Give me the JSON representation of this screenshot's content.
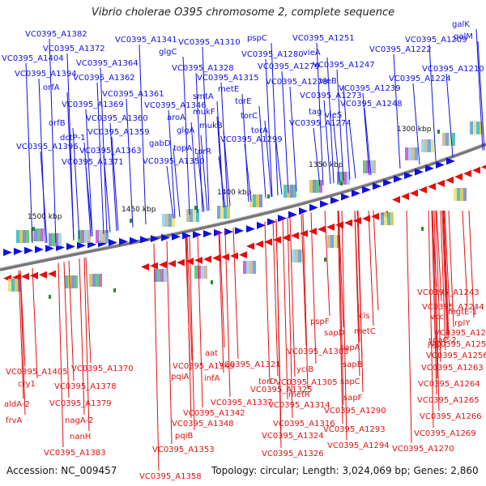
{
  "title": "Vibrio cholerae O395 chromosome 2, complete sequence",
  "ruler_labels": [
    "1300 kbp",
    "1350 kbp",
    "1400 kbp",
    "1450 kbp",
    "1500 kbp"
  ],
  "forward_labels": [
    "VC0395_A1382",
    "VC0395_A1372",
    "VC0395_A1404",
    "VC0395_A1364",
    "VC0395_A1394",
    "orfA",
    "VC0395_A1362",
    "VC0395_A1361",
    "VC0395_A1369",
    "VC0395_A1360",
    "orfB",
    "dctP-1",
    "VC0395_A1359",
    "VC0395_A1396",
    "VC0395_A1363",
    "VC0395_A1371",
    "VC0395_A1341",
    "glgC",
    "VC0395_A1328",
    "smtA",
    "VC0395_A1346",
    "aroA",
    "glgA",
    "gabD",
    "topA",
    "VC0395_A1350",
    "VC0395_A1310",
    "pspC",
    "VC0395_A1280",
    "VC0395_A1279",
    "VC0395_A1315",
    "metE",
    "torE",
    "mukF",
    "mukB",
    "torR",
    "torC",
    "torA",
    "VC0395_A1299",
    "VC0395_A1278",
    "VC0395_A1273",
    "tag",
    "VC0395_A1274",
    "VC0395_A1251",
    "vieA",
    "VC0395_A1247",
    "vieB",
    "vieS",
    "VC0395_A1248",
    "VC0395_A1209",
    "VC0395_A1222",
    "VC0395_A1224",
    "VC0395_A1239",
    "VC0395_A1210",
    "galK",
    "galM"
  ],
  "reverse_labels": [
    "VC0395_A1243",
    "VC0395_A1244",
    "mgtE-1",
    "vcc",
    "rplY",
    "cls",
    "VC0395_A1249",
    "pspF",
    "metC",
    "sdaC-2",
    "VC0395_A1253",
    "sapD",
    "hslJ",
    "VC0395_A1256",
    "sapA",
    "VC0395_A1303",
    "aat",
    "VC0395_A1349",
    "VC0395_A1321",
    "yciB",
    "VC0395_A1263",
    "pqiA",
    "infA",
    "torD",
    "VC0395_A1305",
    "sapB",
    "sapC",
    "VC0395_A1264",
    "VC0395_A1325",
    "metR",
    "VC0395_A1337",
    "VC0395_A1314",
    "sapF",
    "VC0395_A1265",
    "VC0395_A1342",
    "VC0395_A1290",
    "VC0395_A1266",
    "VC0395_A1348",
    "VC0395_A1316",
    "VC0395_A1293",
    "VC0395_A1269",
    "pqiB",
    "VC0395_A1324",
    "VC0395_A1294",
    "VC0395_A1270",
    "VC0395_A1353",
    "VC0395_A1326",
    "VC0395_A1358",
    "VC0395_A1405",
    "cry1",
    "VC0395_A1370",
    "VC0395_A1378",
    "aldA-2",
    "VC0395_A1379",
    "frvA",
    "nagA-2",
    "nanH",
    "VC0395_A1383"
  ],
  "footer": {
    "accession": "Accession: NC_009457",
    "topology": "Topology: circular; Length: 3,024,069 bp; Genes: 2,860"
  },
  "colors": {
    "forward": "#1010e0",
    "reverse": "#e01010",
    "backbone": "#777777",
    "tick": "#2a8a2a"
  }
}
